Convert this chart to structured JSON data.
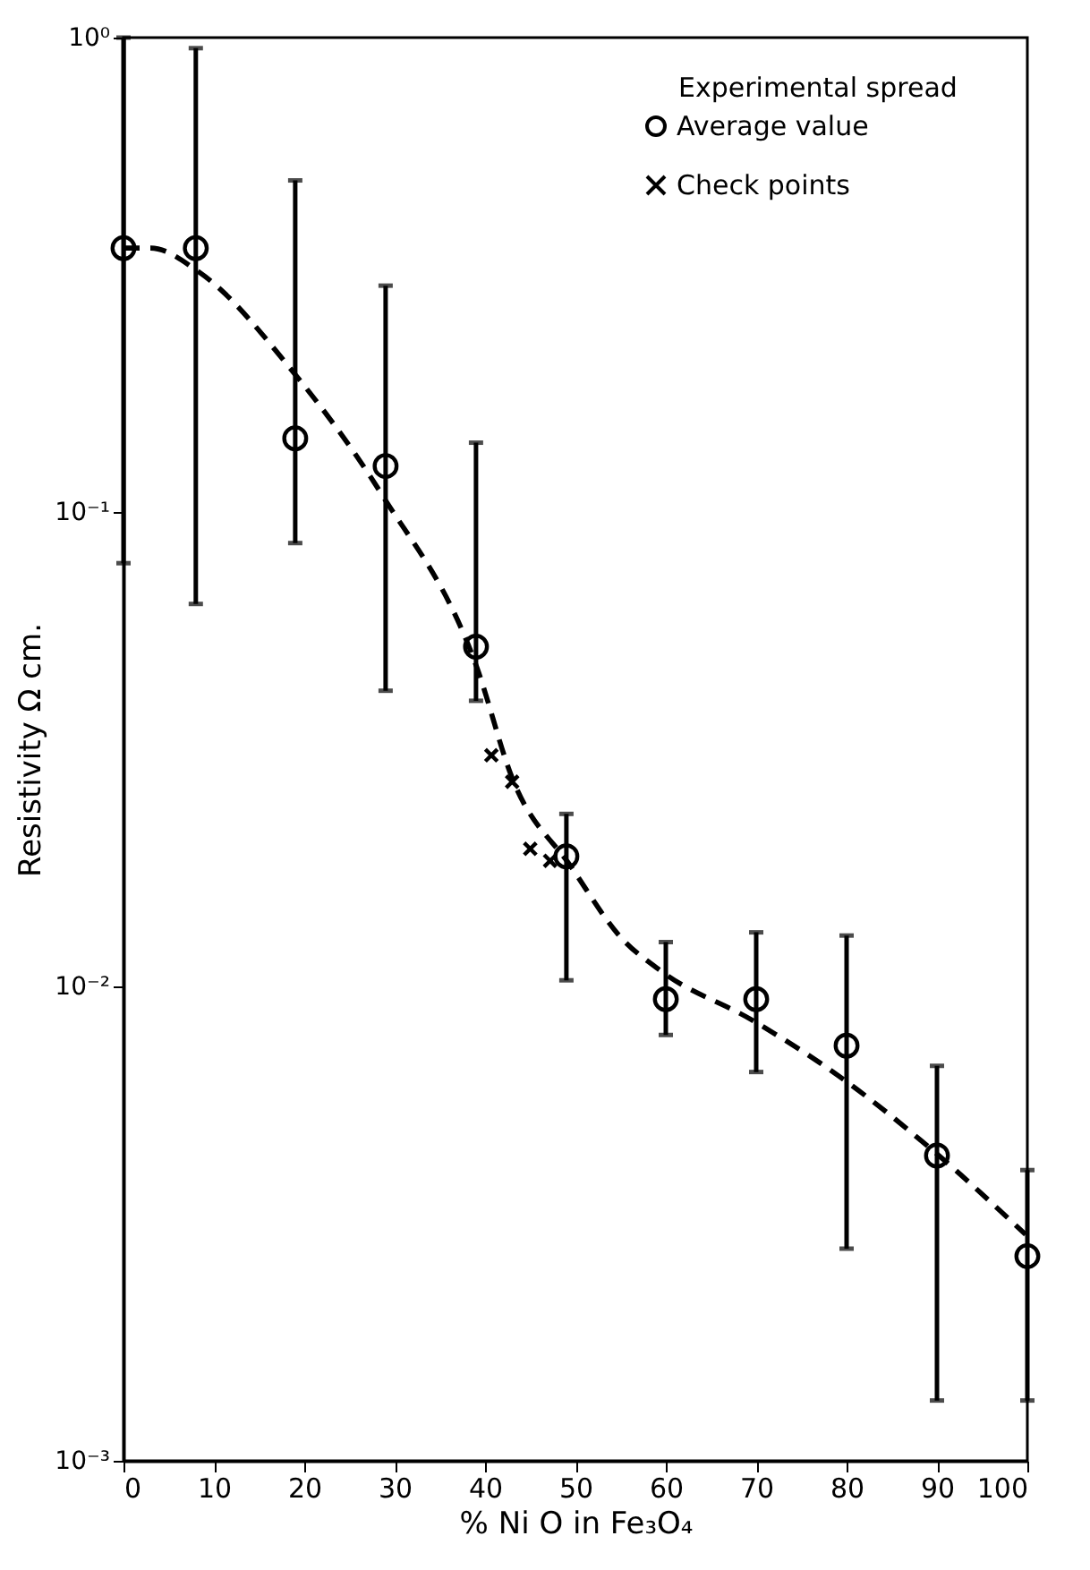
{
  "chart_data": {
    "type": "scatter",
    "xlabel": "% Ni O in Fe₃O₄",
    "ylabel": "Resistivity Ω cm.",
    "annotations": [
      "Experimental spread"
    ],
    "log": "y",
    "xlim": [
      0,
      100
    ],
    "xticks": [
      0,
      10,
      20,
      30,
      40,
      50,
      60,
      70,
      80,
      90,
      100
    ],
    "ylim": [
      0.001,
      1
    ],
    "yticks": [
      {
        "value": 0.001,
        "label": "10⁻³"
      },
      {
        "value": 0.01,
        "label": "10⁻²"
      },
      {
        "value": 0.1,
        "label": "10⁻¹"
      },
      {
        "value": 1,
        "label": "10⁰"
      }
    ],
    "grid": false,
    "legend": "top right",
    "series": [
      {
        "name": "Average value",
        "marker": "circle",
        "color": "#000000",
        "x": [
          0,
          8,
          19,
          29,
          39,
          49,
          60,
          70,
          80,
          90,
          100
        ],
        "values": [
          0.36,
          0.36,
          0.143,
          0.125,
          0.052,
          0.0188,
          0.0094,
          0.0094,
          0.0075,
          0.0044,
          0.0027
        ],
        "errors": [
          [
            0.078,
            1
          ],
          [
            0.064,
            0.95
          ],
          [
            0.086,
            0.5
          ],
          [
            0.042,
            0.3
          ],
          [
            0.04,
            0.14
          ],
          [
            0.0103,
            0.0231
          ],
          [
            0.0079,
            0.0124
          ],
          [
            0.0066,
            0.013
          ],
          [
            0.0028,
            0.0128
          ],
          [
            0.00134,
            0.0068
          ],
          [
            0.00134,
            0.0041
          ]
        ]
      },
      {
        "name": "Check points",
        "marker": "cross",
        "color": "#000000",
        "x": [
          40.7,
          43,
          45,
          47.2
        ],
        "values": [
          0.0307,
          0.027,
          0.0195,
          0.0184
        ]
      },
      {
        "type": "line",
        "line_style": "dashed",
        "color": "#000000",
        "x": [
          0,
          3,
          8.4,
          18.8,
          28.7,
          39.1,
          43,
          49.5,
          55,
          59.7,
          69.5,
          79.5,
          89.6,
          99.8
        ],
        "values": [
          0.36,
          0.36,
          0.32,
          0.197,
          0.108,
          0.047,
          0.0275,
          0.0179,
          0.0127,
          0.0107,
          0.0085,
          0.0064,
          0.0045,
          0.003
        ]
      }
    ]
  }
}
